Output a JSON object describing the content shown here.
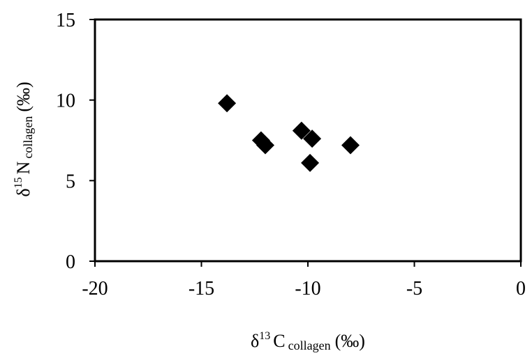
{
  "chart_data": {
    "type": "scatter",
    "marker": "diamond",
    "marker_color": "#000000",
    "xlim": [
      -20,
      0
    ],
    "ylim": [
      0,
      15
    ],
    "xticks": [
      -20,
      -15,
      -10,
      -5,
      0
    ],
    "yticks": [
      0,
      5,
      10,
      15
    ],
    "xlabel": {
      "symbol": "δ",
      "isotope": "13",
      "element": "C",
      "subscript": "collagen",
      "unit": "(‰)"
    },
    "ylabel": {
      "symbol": "δ",
      "isotope": "15",
      "element": "N",
      "subscript": "collagen",
      "unit": "(‰)"
    },
    "grid": false,
    "points": [
      {
        "x": -13.8,
        "y": 9.8
      },
      {
        "x": -12.2,
        "y": 7.5
      },
      {
        "x": -12.0,
        "y": 7.2
      },
      {
        "x": -10.3,
        "y": 8.1
      },
      {
        "x": -9.8,
        "y": 7.6
      },
      {
        "x": -9.9,
        "y": 6.1
      },
      {
        "x": -8.0,
        "y": 7.2
      }
    ]
  }
}
